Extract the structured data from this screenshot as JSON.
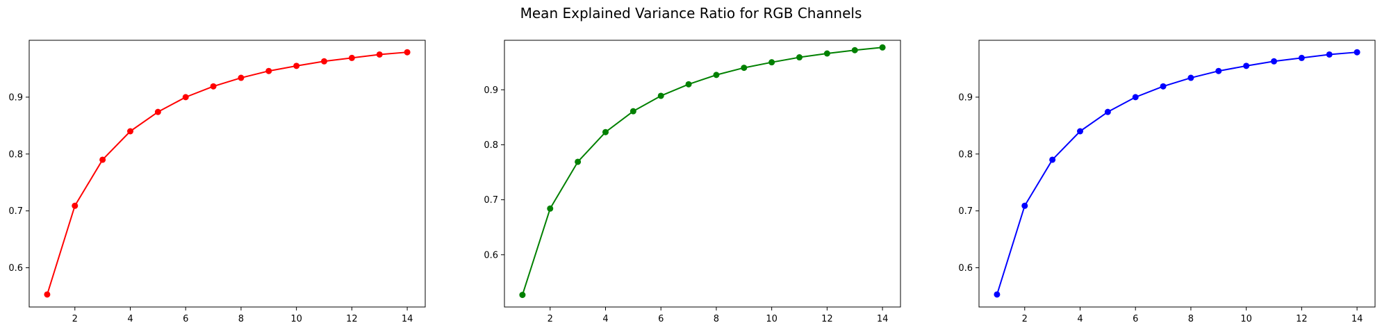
{
  "figure": {
    "title": "Mean Explained Variance Ratio for RGB Channels"
  },
  "chart_data": [
    {
      "type": "line",
      "title": "",
      "xlabel": "",
      "ylabel": "",
      "color": "#ff0000",
      "marker": "circle",
      "grid": false,
      "xlim": [
        0.35,
        14.65
      ],
      "ylim": [
        0.531,
        1.0
      ],
      "xticks": [
        2,
        4,
        6,
        8,
        10,
        12,
        14
      ],
      "yticks": [
        0.6,
        0.7,
        0.8,
        0.9
      ],
      "x": [
        1,
        2,
        3,
        4,
        5,
        6,
        7,
        8,
        9,
        10,
        11,
        12,
        13,
        14
      ],
      "series": [
        {
          "values": [
            0.553,
            0.709,
            0.79,
            0.84,
            0.874,
            0.9,
            0.919,
            0.934,
            0.946,
            0.955,
            0.963,
            0.969,
            0.975,
            0.979
          ]
        }
      ]
    },
    {
      "type": "line",
      "title": "",
      "xlabel": "",
      "ylabel": "",
      "color": "#008000",
      "marker": "circle",
      "grid": false,
      "xlim": [
        0.35,
        14.65
      ],
      "ylim": [
        0.505,
        0.99
      ],
      "xticks": [
        2,
        4,
        6,
        8,
        10,
        12,
        14
      ],
      "yticks": [
        0.6,
        0.7,
        0.8,
        0.9
      ],
      "x": [
        1,
        2,
        3,
        4,
        5,
        6,
        7,
        8,
        9,
        10,
        11,
        12,
        13,
        14
      ],
      "series": [
        {
          "values": [
            0.527,
            0.684,
            0.769,
            0.823,
            0.861,
            0.889,
            0.91,
            0.927,
            0.94,
            0.95,
            0.959,
            0.966,
            0.972,
            0.977
          ]
        }
      ]
    },
    {
      "type": "line",
      "title": "",
      "xlabel": "",
      "ylabel": "",
      "color": "#0000ff",
      "marker": "circle",
      "grid": false,
      "xlim": [
        0.35,
        14.65
      ],
      "ylim": [
        0.531,
        1.0
      ],
      "xticks": [
        2,
        4,
        6,
        8,
        10,
        12,
        14
      ],
      "yticks": [
        0.6,
        0.7,
        0.8,
        0.9
      ],
      "x": [
        1,
        2,
        3,
        4,
        5,
        6,
        7,
        8,
        9,
        10,
        11,
        12,
        13,
        14
      ],
      "series": [
        {
          "values": [
            0.553,
            0.709,
            0.79,
            0.84,
            0.874,
            0.9,
            0.919,
            0.934,
            0.946,
            0.955,
            0.963,
            0.969,
            0.975,
            0.979
          ]
        }
      ]
    }
  ]
}
